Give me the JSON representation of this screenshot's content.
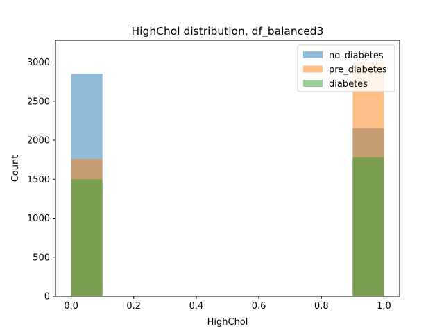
{
  "chart_data": {
    "type": "bar",
    "title": "HighChol distribution, df_balanced3",
    "xlabel": "HighChol",
    "ylabel": "Count",
    "xlim": [
      -0.05,
      1.05
    ],
    "ylim": [
      0,
      3280
    ],
    "x_ticks": [
      "0.0",
      "0.2",
      "0.4",
      "0.6",
      "0.8",
      "1.0"
    ],
    "y_ticks": [
      "0",
      "500",
      "1000",
      "1500",
      "2000",
      "2500",
      "3000"
    ],
    "grid": false,
    "legend_position": "top-right",
    "bin_width": 0.1,
    "categories": [
      "0.0",
      "1.0"
    ],
    "series": [
      {
        "name": "no_diabetes",
        "color": "#1f77b4",
        "x": [
          0.0,
          0.9
        ],
        "values": [
          2850,
          2150
        ]
      },
      {
        "name": "pre_diabetes",
        "color": "#ff7f0e",
        "x": [
          0.0,
          0.9
        ],
        "values": [
          1760,
          3000
        ]
      },
      {
        "name": "diabetes",
        "color": "#2ca02c",
        "x": [
          0.0,
          0.9
        ],
        "values": [
          1500,
          1780
        ]
      }
    ]
  }
}
